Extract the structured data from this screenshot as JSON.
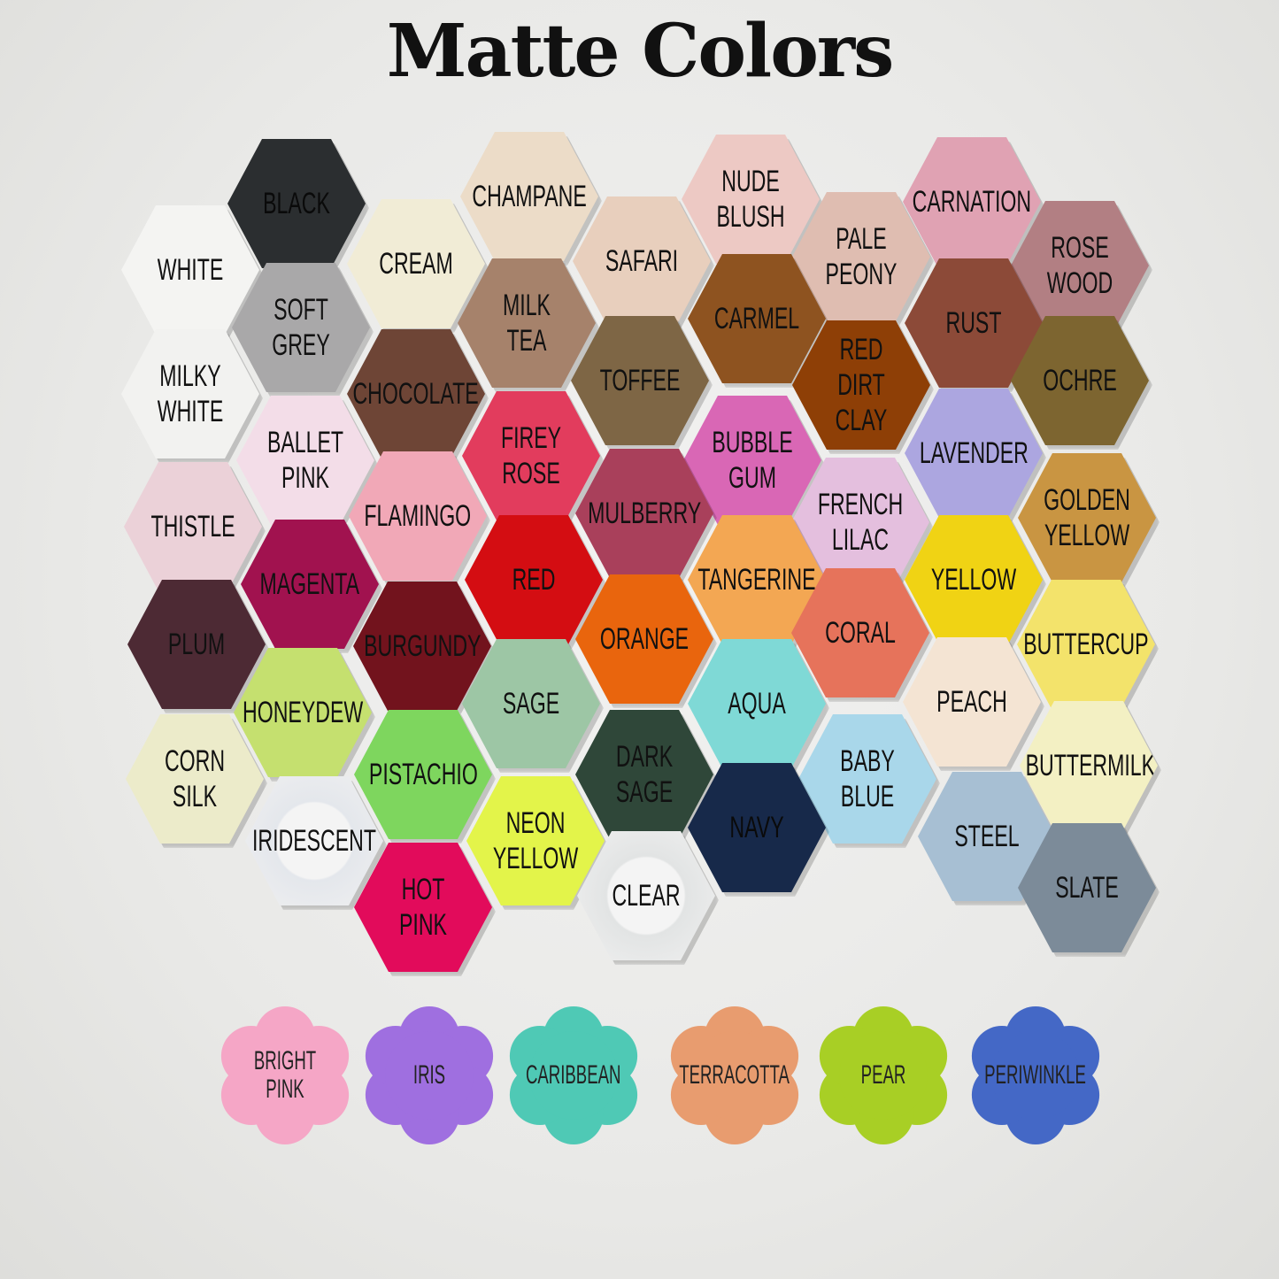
{
  "title": "Matte Colors",
  "hexagons": [
    {
      "label": "WHITE",
      "color": "#f4f4f2"
    },
    {
      "label": "BLACK",
      "color": "#2b2e30"
    },
    {
      "label": "CREAM",
      "color": "#f1ecd6"
    },
    {
      "label": "CHAMPANE",
      "color": "#ecdcc8"
    },
    {
      "label": "SAFARI",
      "color": "#e8cfbd"
    },
    {
      "label": "NUDE\nBLUSH",
      "color": "#edc9c4"
    },
    {
      "label": "PALE\nPEONY",
      "color": "#dfbdb1"
    },
    {
      "label": "CARNATION",
      "color": "#e0a2b3"
    },
    {
      "label": "ROSE\n  WOOD",
      "color": "#b27f83"
    },
    {
      "label": "SOFT\n  GREY",
      "color": "#a9a8a9"
    },
    {
      "label": "MILK\nTEA",
      "color": "#a6826b"
    },
    {
      "label": "CARMEL",
      "color": "#8e5320"
    },
    {
      "label": "RUST",
      "color": "#8c4a38"
    },
    {
      "label": "MILKY\nWHITE",
      "color": "#f2f2f0"
    },
    {
      "label": "CHOCOLATE",
      "color": "#6e4536"
    },
    {
      "label": "TOFFEE",
      "color": "#7e6645"
    },
    {
      "label": "RED DIRT\nCLAY",
      "color": "#8e3f06"
    },
    {
      "label": "OCHRE",
      "color": "#7d6530"
    },
    {
      "label": "BALLET\nPINK",
      "color": "#f3dde8"
    },
    {
      "label": "FIREY\nROSE",
      "color": "#e23c5d"
    },
    {
      "label": "BUBBLE\nGUM",
      "color": "#d967b5"
    },
    {
      "label": "LAVENDER",
      "color": "#aca6e0"
    },
    {
      "label": "THISTLE",
      "color": "#ebd1d8"
    },
    {
      "label": "FLAMINGO",
      "color": "#f1a8b7"
    },
    {
      "label": "MULBERRY",
      "color": "#a9405b"
    },
    {
      "label": "FRENCH\n  LILAC",
      "color": "#e4bfde"
    },
    {
      "label": "GOLDEN\nYELLOW",
      "color": "#c99542"
    },
    {
      "label": "MAGENTA",
      "color": "#a1124f"
    },
    {
      "label": "RED",
      "color": "#d40d12"
    },
    {
      "label": "TANGERINE",
      "color": "#f3a753"
    },
    {
      "label": "YELLOW",
      "color": "#f0d314"
    },
    {
      "label": "PLUM",
      "color": "#4d2a34"
    },
    {
      "label": "BURGUNDY",
      "color": "#72131d"
    },
    {
      "label": "ORANGE",
      "color": "#e9650d"
    },
    {
      "label": "CORAL",
      "color": "#e6735b"
    },
    {
      "label": "BUTTERCUP",
      "color": "#f3e36b"
    },
    {
      "label": "HONEYDEW",
      "color": "#c5e06f"
    },
    {
      "label": "SAGE",
      "color": "#9dc6a5"
    },
    {
      "label": "AQUA",
      "color": "#7fd9d6"
    },
    {
      "label": "PEACH",
      "color": "#f4e4d3"
    },
    {
      "label": "CORN\n  SILK",
      "color": "#ecebca"
    },
    {
      "label": "PISTACHIO",
      "color": "#7ed65e"
    },
    {
      "label": "DARK\nSAGE",
      "color": "#2f4739"
    },
    {
      "label": "BABY\nBLUE",
      "color": "#a9d7ea"
    },
    {
      "label": "BUTTERMILK",
      "color": "#f3f0c3"
    },
    {
      "label": "IRIDESCENT",
      "color": "#e4e7ec"
    },
    {
      "label": "NEON\n  YELLOW",
      "color": "#e3f44a"
    },
    {
      "label": "NAVY",
      "color": "#17294a"
    },
    {
      "label": "STEEL",
      "color": "#a7bfd3"
    },
    {
      "label": "HOT\n  PINK",
      "color": "#e20b5b"
    },
    {
      "label": "CLEAR",
      "color": "#e2e4e4"
    },
    {
      "label": "SLATE",
      "color": "#7c8b99"
    }
  ],
  "flowers": [
    {
      "label": "BRIGHT\nPINK",
      "color": "#f5a6c6"
    },
    {
      "label": "IRIS",
      "color": "#9f6fe0"
    },
    {
      "label": "CARIBBEAN",
      "color": "#4fc9b5"
    },
    {
      "label": "TERRACOTTA",
      "color": "#e89c6f"
    },
    {
      "label": "PEAR",
      "color": "#a8cf25"
    },
    {
      "label": "PERIWINKLE",
      "color": "#4468c6"
    }
  ]
}
